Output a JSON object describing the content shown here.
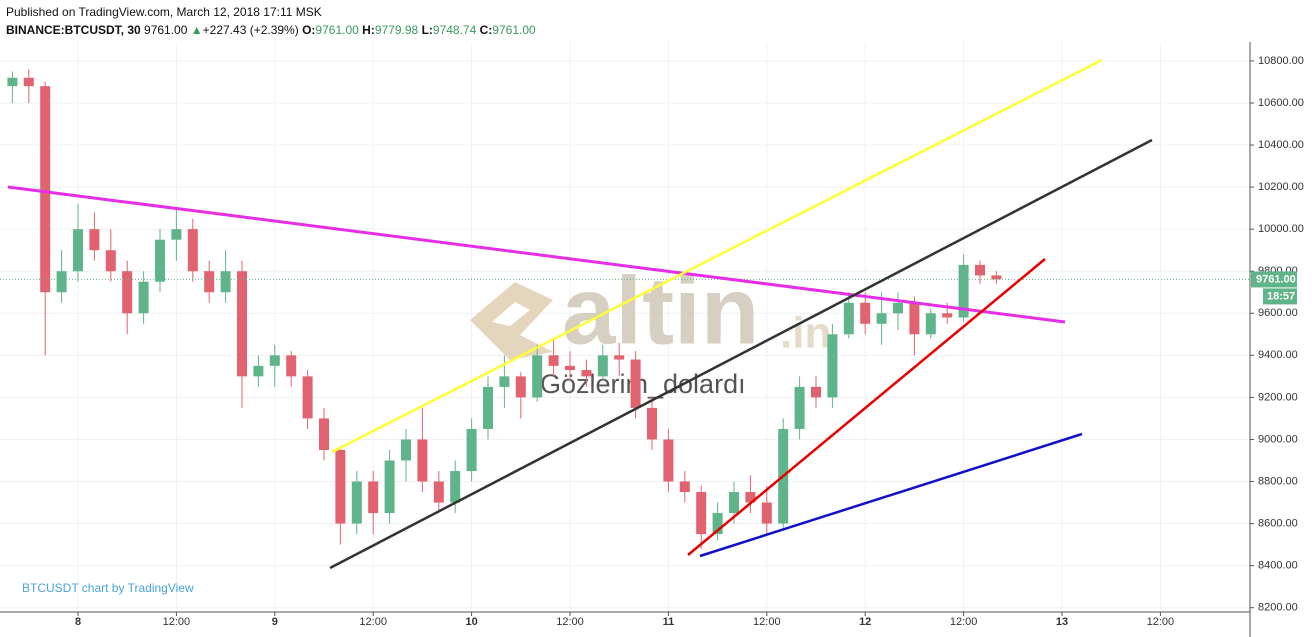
{
  "header": {
    "published": "Published on TradingView.com, March 12, 2018 17:11 MSK",
    "symbol": "BINANCE:BTCUSDT, 30",
    "last": "9761.00",
    "arrow": "▲",
    "change": "+227.43 (+2.39%)",
    "ohlc": [
      {
        "label": "O:",
        "value": "9761.00"
      },
      {
        "label": "H:",
        "value": "9779.98"
      },
      {
        "label": "L:",
        "value": "9748.74"
      },
      {
        "label": "C:",
        "value": "9761.00"
      }
    ]
  },
  "watermarks": {
    "brand": "altin",
    "brand_suffix": ".in",
    "author": "Gözlerim_dolardı",
    "credit": "BTCUSDT chart by TradingView"
  },
  "chart_data": {
    "type": "candlestick",
    "categories": [
      null,
      null,
      null,
      null,
      "8",
      null,
      null,
      null,
      null,
      null,
      "12:00",
      null,
      null,
      null,
      null,
      null,
      "9",
      null,
      null,
      null,
      null,
      null,
      "12:00",
      null,
      null,
      null,
      null,
      null,
      "10",
      null,
      null,
      null,
      null,
      null,
      "12:00",
      null,
      null,
      null,
      null,
      null,
      "11",
      null,
      null,
      null,
      null,
      null,
      "12:00",
      null,
      null,
      null,
      null,
      null,
      "12",
      null,
      null,
      null,
      null,
      null,
      "12:00",
      null,
      null,
      null,
      null,
      null,
      "13",
      null,
      null,
      null,
      null,
      null,
      "12:00"
    ],
    "open": [
      10680,
      10720,
      10680,
      9700,
      9800,
      10000,
      9900,
      9800,
      9600,
      9750,
      9950,
      10000,
      9800,
      9700,
      9800,
      9300,
      9350,
      9400,
      9300,
      9100,
      8950,
      8600,
      8800,
      8650,
      8900,
      9000,
      8800,
      8700,
      8850,
      9050,
      9250,
      9300,
      9200,
      9400,
      9350,
      9330,
      9300,
      9400,
      9380,
      9150,
      9000,
      8800,
      8750,
      8550,
      8650,
      8750,
      8700,
      8600,
      9050,
      9250,
      9200,
      9500,
      9650,
      9550,
      9600,
      9650,
      9500,
      9600,
      9580,
      9830,
      9780,
      null,
      null,
      null,
      null,
      null,
      null,
      null,
      null,
      null,
      null
    ],
    "high": [
      10750,
      10760,
      10700,
      9900,
      10120,
      10080,
      10000,
      9850,
      9800,
      10000,
      10100,
      10050,
      9850,
      9900,
      9850,
      9400,
      9450,
      9420,
      9330,
      9150,
      8970,
      8850,
      8850,
      8950,
      9050,
      9150,
      8850,
      8900,
      9100,
      9300,
      9400,
      9320,
      9450,
      9480,
      9420,
      9380,
      9450,
      9460,
      9420,
      9200,
      9050,
      8850,
      8780,
      8700,
      8800,
      8830,
      8780,
      9100,
      9300,
      9300,
      9550,
      9700,
      9700,
      9700,
      9700,
      9680,
      9620,
      9650,
      9880,
      9850,
      9800,
      null,
      null,
      null,
      null,
      null,
      null,
      null,
      null,
      null,
      null
    ],
    "low": [
      10600,
      10600,
      9400,
      9650,
      9750,
      9850,
      9750,
      9500,
      9550,
      9700,
      9850,
      9750,
      9650,
      9650,
      9150,
      9250,
      9250,
      9250,
      9050,
      8900,
      8500,
      8550,
      8550,
      8600,
      8800,
      8750,
      8650,
      8650,
      8800,
      9000,
      9150,
      9100,
      9180,
      9300,
      9280,
      9250,
      9280,
      9300,
      9100,
      8950,
      8750,
      8700,
      8480,
      8520,
      8600,
      8650,
      8550,
      8580,
      9000,
      9150,
      9150,
      9480,
      9500,
      9450,
      9520,
      9400,
      9480,
      9550,
      9560,
      9740,
      9740,
      null,
      null,
      null,
      null,
      null,
      null,
      null,
      null,
      null,
      null
    ],
    "close": [
      10720,
      10680,
      9700,
      9800,
      10000,
      9900,
      9800,
      9600,
      9750,
      9950,
      10000,
      9800,
      9700,
      9800,
      9300,
      9350,
      9400,
      9300,
      9100,
      8950,
      8600,
      8800,
      8650,
      8900,
      9000,
      8800,
      8700,
      8850,
      9050,
      9250,
      9300,
      9200,
      9400,
      9350,
      9330,
      9300,
      9400,
      9380,
      9150,
      9000,
      8800,
      8750,
      8550,
      8650,
      8750,
      8700,
      8600,
      9050,
      9250,
      9200,
      9500,
      9650,
      9550,
      9600,
      9650,
      9500,
      9600,
      9580,
      9830,
      9780,
      9761,
      null,
      null,
      null,
      null,
      null,
      null,
      null,
      null,
      null,
      null
    ],
    "up_color": "#5fb48a",
    "down_color": "#e0636f",
    "ylim": [
      8170,
      10890
    ],
    "yticks": [
      {
        "value": 8200,
        "label": "8200.00"
      },
      {
        "value": 8400,
        "label": "8400.00"
      },
      {
        "value": 8600,
        "label": "8600.00"
      },
      {
        "value": 8800,
        "label": "8800.00"
      },
      {
        "value": 9000,
        "label": "9000.00"
      },
      {
        "value": 9200,
        "label": "9200.00"
      },
      {
        "value": 9400,
        "label": "9400.00"
      },
      {
        "value": 9600,
        "label": "9600.00"
      },
      {
        "value": 9800,
        "label": "9800.00"
      },
      {
        "value": 10000,
        "label": "10000.00"
      },
      {
        "value": 10200,
        "label": "10200.00"
      },
      {
        "value": 10400,
        "label": "10400.00"
      },
      {
        "value": 10600,
        "label": "10600.00"
      },
      {
        "value": 10800,
        "label": "10800.00"
      }
    ],
    "grid": true,
    "current_price": {
      "value": 9761,
      "label": "9761.00"
    },
    "countdown": "18:57"
  }
}
